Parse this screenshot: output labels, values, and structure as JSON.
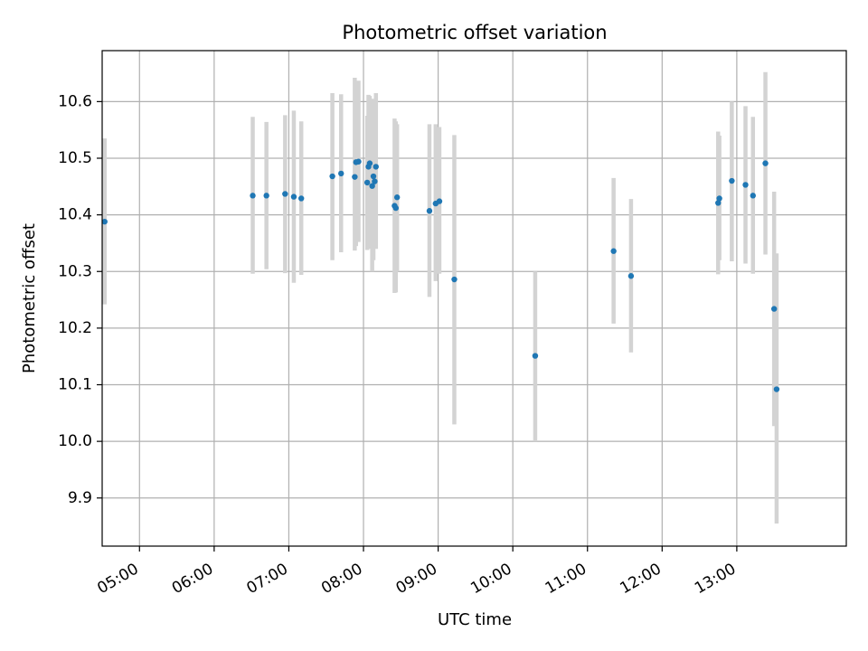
{
  "chart_data": {
    "type": "scatter",
    "title": "Photometric offset variation",
    "xlabel": "UTC time",
    "ylabel": "Photometric offset",
    "x_axis_kind": "time-of-day",
    "xlim": [
      "04:30",
      "14:28"
    ],
    "ylim": [
      9.815,
      10.69
    ],
    "x_ticks": [
      "05:00",
      "06:00",
      "07:00",
      "08:00",
      "09:00",
      "10:00",
      "11:00",
      "12:00",
      "13:00"
    ],
    "y_ticks": [
      "9.9",
      "10.0",
      "10.1",
      "10.2",
      "10.3",
      "10.4",
      "10.5",
      "10.6"
    ],
    "grid": true,
    "point_color": "#1f77b4",
    "errorbar_color": "#d3d3d3",
    "series": [
      {
        "points": [
          {
            "t": "04:32",
            "y": 10.388,
            "lo": 10.242,
            "hi": 10.535
          },
          {
            "t": "06:31",
            "y": 10.434,
            "lo": 10.296,
            "hi": 10.573
          },
          {
            "t": "06:42",
            "y": 10.434,
            "lo": 10.304,
            "hi": 10.564
          },
          {
            "t": "06:57",
            "y": 10.437,
            "lo": 10.297,
            "hi": 10.576
          },
          {
            "t": "07:04",
            "y": 10.432,
            "lo": 10.28,
            "hi": 10.584
          },
          {
            "t": "07:10",
            "y": 10.429,
            "lo": 10.294,
            "hi": 10.565
          },
          {
            "t": "07:35",
            "y": 10.468,
            "lo": 10.32,
            "hi": 10.615
          },
          {
            "t": "07:42",
            "y": 10.473,
            "lo": 10.334,
            "hi": 10.613
          },
          {
            "t": "07:53",
            "y": 10.467,
            "lo": 10.337,
            "hi": 10.642
          },
          {
            "t": "07:54",
            "y": 10.493,
            "lo": 10.345,
            "hi": 10.635
          },
          {
            "t": "07:56",
            "y": 10.494,
            "lo": 10.352,
            "hi": 10.637
          },
          {
            "t": "08:03",
            "y": 10.457,
            "lo": 10.338,
            "hi": 10.575
          },
          {
            "t": "08:04",
            "y": 10.485,
            "lo": 10.34,
            "hi": 10.612
          },
          {
            "t": "08:05",
            "y": 10.491,
            "lo": 10.37,
            "hi": 10.61
          },
          {
            "t": "08:07",
            "y": 10.451,
            "lo": 10.3,
            "hi": 10.6
          },
          {
            "t": "08:08",
            "y": 10.468,
            "lo": 10.32,
            "hi": 10.605
          },
          {
            "t": "08:09",
            "y": 10.459,
            "lo": 10.35,
            "hi": 10.595
          },
          {
            "t": "08:10",
            "y": 10.485,
            "lo": 10.34,
            "hi": 10.615
          },
          {
            "t": "08:25",
            "y": 10.416,
            "lo": 10.262,
            "hi": 10.57
          },
          {
            "t": "08:26",
            "y": 10.412,
            "lo": 10.263,
            "hi": 10.565
          },
          {
            "t": "08:27",
            "y": 10.431,
            "lo": 10.3,
            "hi": 10.56
          },
          {
            "t": "08:53",
            "y": 10.407,
            "lo": 10.255,
            "hi": 10.56
          },
          {
            "t": "08:58",
            "y": 10.42,
            "lo": 10.283,
            "hi": 10.56
          },
          {
            "t": "09:01",
            "y": 10.424,
            "lo": 10.296,
            "hi": 10.555
          },
          {
            "t": "09:13",
            "y": 10.286,
            "lo": 10.03,
            "hi": 10.541
          },
          {
            "t": "10:18",
            "y": 10.151,
            "lo": 10.0,
            "hi": 10.3
          },
          {
            "t": "11:21",
            "y": 10.336,
            "lo": 10.208,
            "hi": 10.465
          },
          {
            "t": "11:35",
            "y": 10.292,
            "lo": 10.157,
            "hi": 10.428
          },
          {
            "t": "12:45",
            "y": 10.421,
            "lo": 10.295,
            "hi": 10.547
          },
          {
            "t": "12:46",
            "y": 10.429,
            "lo": 10.32,
            "hi": 10.54
          },
          {
            "t": "12:56",
            "y": 10.46,
            "lo": 10.318,
            "hi": 10.6
          },
          {
            "t": "13:07",
            "y": 10.453,
            "lo": 10.314,
            "hi": 10.592
          },
          {
            "t": "13:13",
            "y": 10.434,
            "lo": 10.296,
            "hi": 10.573
          },
          {
            "t": "13:23",
            "y": 10.491,
            "lo": 10.33,
            "hi": 10.652
          },
          {
            "t": "13:30",
            "y": 10.234,
            "lo": 10.027,
            "hi": 10.441
          },
          {
            "t": "13:32",
            "y": 10.092,
            "lo": 9.855,
            "hi": 10.332
          }
        ]
      }
    ]
  }
}
